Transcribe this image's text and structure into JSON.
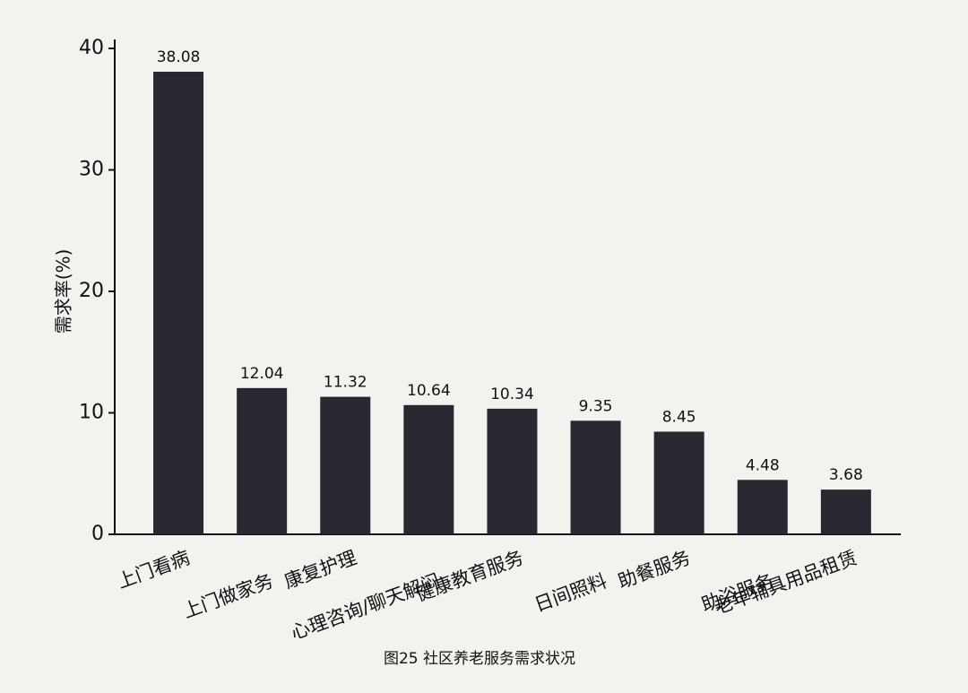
{
  "chart_data": {
    "type": "bar",
    "title": "图25 社区养老服务需求状况",
    "y_label": "需求率(%)",
    "categories": [
      "上门看病",
      "上门做家务",
      "康复护理",
      "心理咨询/聊天解闷",
      "健康教育服务",
      "日间照料",
      "助餐服务",
      "助浴服务",
      "老年辅具用品租赁"
    ],
    "values": [
      38.08,
      12.04,
      11.32,
      10.64,
      10.34,
      9.35,
      8.45,
      4.48,
      3.68
    ],
    "color": "#2b2731",
    "ylim": [
      0,
      40
    ],
    "yticks": [
      0,
      10,
      20,
      30,
      40
    ],
    "grid": false
  }
}
